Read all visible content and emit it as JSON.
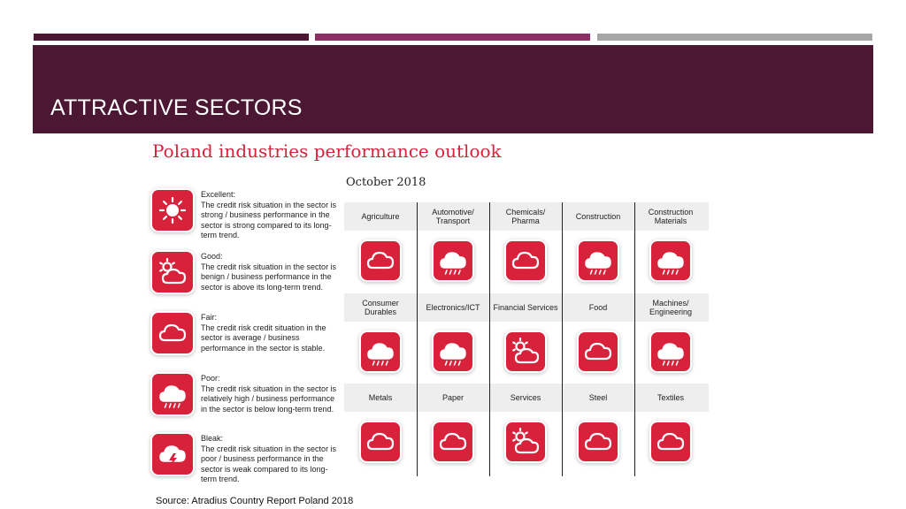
{
  "slide": {
    "title": "ATTRACTIVE SECTORS",
    "source": "Source: Atradius Country Report Poland 2018"
  },
  "report": {
    "title": "Poland industries performance outlook",
    "date": "October 2018"
  },
  "legend": [
    {
      "icon": "sun-icon",
      "text": "Excellent:\nThe credit risk situation in the sector is strong / business performance in the sector is strong compared to its long-term trend."
    },
    {
      "icon": "sun-cloud-icon",
      "text": "Good:\nThe credit risk situation in the sector is benign / business performance in the sector is above its long-term trend."
    },
    {
      "icon": "cloud-icon",
      "text": "Fair:\nThe credit risk credit situation in the sector is average / business performance in the sector is stable."
    },
    {
      "icon": "rain-cloud-icon",
      "text": "Poor:\nThe credit risk situation in the sector is relatively high / business performance in the sector is below long-term trend."
    },
    {
      "icon": "storm-cloud-icon",
      "text": "Bleak:\nThe credit risk situation in the sector is poor / business performance in the sector is weak compared to its long-term trend."
    }
  ],
  "sectors": [
    [
      {
        "name": "Agriculture",
        "icon": "cloud-icon"
      },
      {
        "name": "Automotive/\nTransport",
        "icon": "rain-cloud-icon"
      },
      {
        "name": "Chemicals/\nPharma",
        "icon": "cloud-icon"
      },
      {
        "name": "Construction",
        "icon": "rain-cloud-icon"
      },
      {
        "name": "Construction\nMaterials",
        "icon": "rain-cloud-icon"
      }
    ],
    [
      {
        "name": "Consumer\nDurables",
        "icon": "rain-cloud-icon"
      },
      {
        "name": "Electronics/ICT",
        "icon": "rain-cloud-icon"
      },
      {
        "name": "Financial Services",
        "icon": "sun-cloud-icon"
      },
      {
        "name": "Food",
        "icon": "cloud-icon"
      },
      {
        "name": "Machines/\nEngineering",
        "icon": "rain-cloud-icon"
      }
    ],
    [
      {
        "name": "Metals",
        "icon": "cloud-icon"
      },
      {
        "name": "Paper",
        "icon": "cloud-icon"
      },
      {
        "name": "Services",
        "icon": "sun-cloud-icon"
      },
      {
        "name": "Steel",
        "icon": "cloud-icon"
      },
      {
        "name": "Textiles",
        "icon": "cloud-icon"
      }
    ]
  ],
  "colors": {
    "title_band": "#4c1733",
    "accent_red": "#d8213b",
    "bar_plum": "#8e2f64",
    "bar_grey": "#a6a6a6"
  }
}
